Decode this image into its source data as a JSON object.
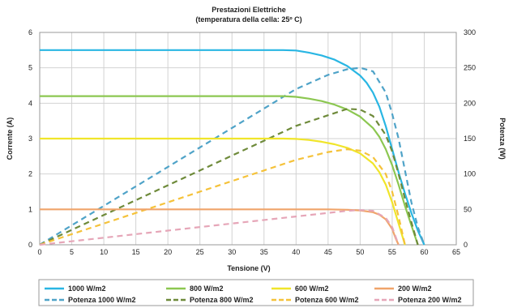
{
  "chart_data": {
    "type": "line",
    "title": "Prestazioni Elettriche",
    "subtitle": "(temperatura della cella: 25º C)",
    "xlabel": "Tensione (V)",
    "ylabel": "Corrente (A)",
    "y2label": "Potenza (W)",
    "xlim": [
      0,
      65
    ],
    "ylim": [
      0,
      6
    ],
    "y2lim": [
      0,
      300
    ],
    "xticks": [
      "0",
      "5",
      "10",
      "15",
      "20",
      "25",
      "30",
      "35",
      "40",
      "45",
      "50",
      "55",
      "60",
      "65"
    ],
    "yticks": [
      "0",
      "1",
      "2",
      "3",
      "4",
      "5",
      "6"
    ],
    "y2ticks": [
      "0",
      "50",
      "100",
      "150",
      "200",
      "250",
      "300"
    ],
    "grid": true,
    "legend_position": "bottom",
    "series": [
      {
        "name": "1000 W/m2",
        "axis": "left",
        "style": "solid",
        "color": "#29b6e3",
        "x": [
          0,
          10,
          20,
          30,
          38,
          40,
          42,
          44,
          46,
          48,
          50,
          51,
          52,
          53,
          54,
          55,
          56,
          57,
          58,
          59,
          60
        ],
        "y": [
          5.5,
          5.5,
          5.5,
          5.5,
          5.5,
          5.49,
          5.43,
          5.35,
          5.23,
          5.05,
          4.78,
          4.58,
          4.3,
          3.9,
          3.35,
          2.7,
          2.05,
          1.45,
          0.9,
          0.4,
          0
        ]
      },
      {
        "name": "Potenza 1000 W/m2",
        "axis": "right",
        "style": "dashed",
        "color": "#4fa3c8",
        "x": [
          0,
          10,
          20,
          30,
          40,
          45,
          48,
          50,
          52,
          54,
          55,
          56,
          57,
          58,
          59,
          60
        ],
        "y": [
          0,
          55,
          110,
          165,
          220,
          240,
          248,
          250,
          245,
          215,
          185,
          150,
          105,
          60,
          25,
          0
        ]
      },
      {
        "name": "800 W/m2",
        "axis": "left",
        "style": "solid",
        "color": "#8cc751",
        "x": [
          0,
          10,
          20,
          30,
          38,
          40,
          42,
          44,
          46,
          48,
          50,
          52,
          53,
          54,
          55,
          56,
          57,
          58,
          59
        ],
        "y": [
          4.2,
          4.2,
          4.2,
          4.2,
          4.2,
          4.18,
          4.13,
          4.06,
          3.96,
          3.82,
          3.62,
          3.3,
          3.05,
          2.7,
          2.25,
          1.7,
          1.1,
          0.55,
          0
        ]
      },
      {
        "name": "Potenza 800 W/m2",
        "axis": "right",
        "style": "dashed",
        "color": "#6e8a3a",
        "x": [
          0,
          10,
          20,
          30,
          40,
          45,
          48,
          50,
          52,
          54,
          55,
          56,
          57,
          58,
          59
        ],
        "y": [
          0,
          42,
          84,
          126,
          168,
          183,
          192,
          191,
          182,
          155,
          132,
          100,
          65,
          32,
          0
        ]
      },
      {
        "name": "600 W/m2",
        "axis": "left",
        "style": "solid",
        "color": "#f0e52a",
        "x": [
          0,
          10,
          20,
          30,
          38,
          40,
          42,
          44,
          46,
          48,
          50,
          52,
          53,
          54,
          55,
          56,
          57
        ],
        "y": [
          3.0,
          3.0,
          3.0,
          3.0,
          3.0,
          2.99,
          2.96,
          2.91,
          2.84,
          2.74,
          2.58,
          2.3,
          2.05,
          1.7,
          1.2,
          0.6,
          0
        ]
      },
      {
        "name": "Potenza 600 W/m2",
        "axis": "right",
        "style": "dashed",
        "color": "#f5c23a",
        "x": [
          0,
          10,
          20,
          30,
          40,
          45,
          48,
          50,
          52,
          54,
          55,
          56,
          57
        ],
        "y": [
          0,
          30,
          60,
          90,
          120,
          131,
          135,
          133,
          124,
          100,
          75,
          40,
          0
        ]
      },
      {
        "name": "200 W/m2",
        "axis": "left",
        "style": "solid",
        "color": "#f0a46a",
        "x": [
          0,
          10,
          20,
          30,
          40,
          45,
          48,
          50,
          52,
          53,
          54,
          55,
          55.5,
          56
        ],
        "y": [
          1.0,
          1.0,
          1.0,
          1.0,
          1.0,
          1.0,
          0.99,
          0.97,
          0.92,
          0.85,
          0.72,
          0.45,
          0.2,
          0
        ]
      },
      {
        "name": "Potenza 200 W/m2",
        "axis": "right",
        "style": "dashed",
        "color": "#e6a6b8",
        "x": [
          0,
          10,
          20,
          30,
          40,
          45,
          48,
          50,
          52,
          54,
          55,
          56
        ],
        "y": [
          0,
          10,
          20,
          30,
          40,
          45,
          48,
          49,
          48,
          38,
          25,
          0
        ]
      }
    ]
  }
}
